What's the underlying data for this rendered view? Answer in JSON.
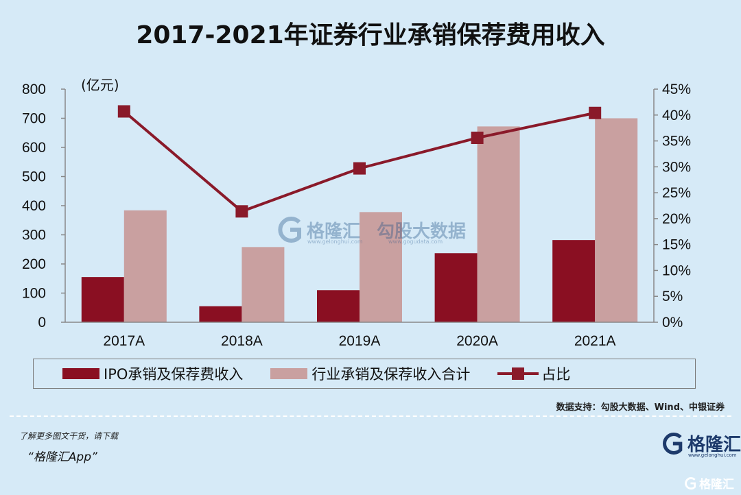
{
  "title": "2017-2021年证券行业承销保荐费用收入",
  "unit_label": "(亿元)",
  "legend": {
    "ipo": "IPO承销及保荐费收入",
    "total": "行业承销及保荐收入合计",
    "ratio": "占比"
  },
  "source": "数据支持：勾股大数据、Wind、中银证券",
  "footnote": "了解更多图文干货，请下载",
  "app_name": "“格隆汇App”",
  "brand": "格隆汇",
  "brand_url": "www.gelonghui.com",
  "watermark": {
    "brand": "格隆汇",
    "brand_url": "www.gelonghui.com",
    "data_brand": "勾股大数据",
    "data_url": "www.gogudata.com"
  },
  "corner_brand": "格隆汇",
  "colors": {
    "background": "#d6eaf7",
    "ipo_bar": "#8a0f22",
    "total_bar": "#c9a0a0",
    "ratio_line": "#8a1a2a",
    "brand": "#1d3a6b"
  },
  "icons": [
    "gelonghui-logo-icon"
  ],
  "chart_data": {
    "type": "bar",
    "categories": [
      "2017A",
      "2018A",
      "2019A",
      "2020A",
      "2021A"
    ],
    "series": [
      {
        "name": "IPO承销及保荐费收入",
        "type": "bar",
        "axis": "left",
        "values": [
          155,
          55,
          110,
          237,
          282
        ]
      },
      {
        "name": "行业承销及保荐收入合计",
        "type": "bar",
        "axis": "left",
        "values": [
          384,
          258,
          378,
          672,
          700
        ]
      },
      {
        "name": "占比",
        "type": "line",
        "axis": "right",
        "values": [
          40.7,
          21.4,
          29.7,
          35.6,
          40.4
        ]
      }
    ],
    "ylim": [
      0,
      800
    ],
    "yticks": [
      "0",
      "100",
      "200",
      "300",
      "400",
      "500",
      "600",
      "700",
      "800"
    ],
    "y2lim": [
      0,
      45
    ],
    "y2ticks": [
      "0%",
      "5%",
      "10%",
      "15%",
      "20%",
      "25%",
      "30%",
      "35%",
      "40%",
      "45%"
    ],
    "ylabel": "(亿元)",
    "grid": false,
    "legend_position": "bottom"
  }
}
